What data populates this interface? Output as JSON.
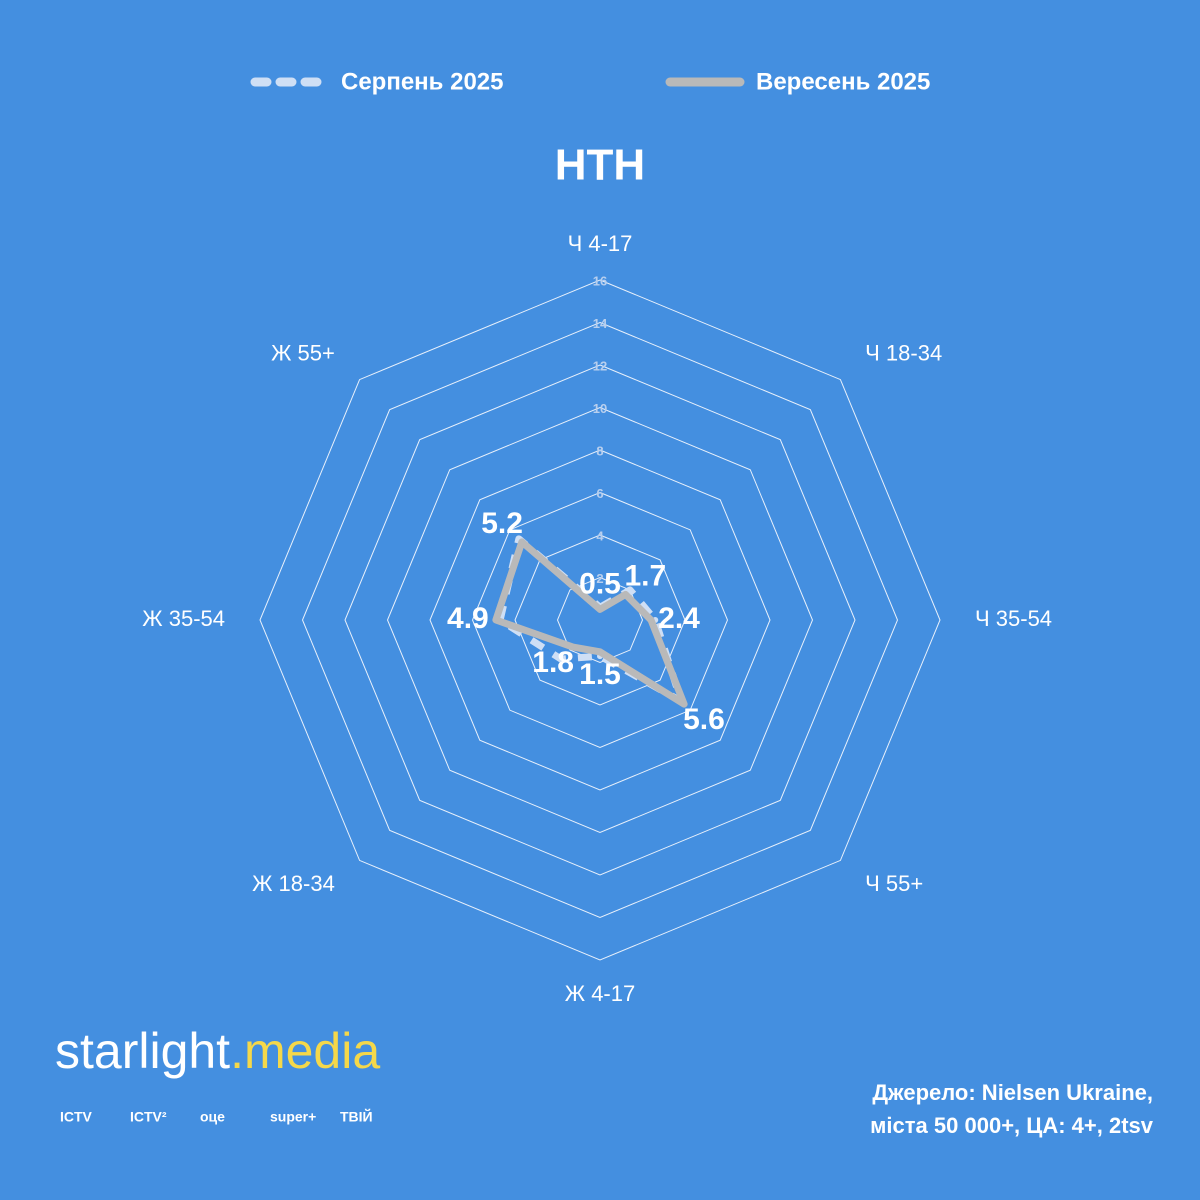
{
  "chart_data": {
    "type": "radar",
    "title": "НТН",
    "categories": [
      "Ч 4-17",
      "Ч 18-34",
      "Ч 35-54",
      "Ч 55+",
      "Ж 4-17",
      "Ж 18-34",
      "Ж 35-54",
      "Ж 55+"
    ],
    "series": [
      {
        "name": "Серпень 2025",
        "color": "#cfdff5",
        "dashed": true,
        "values": [
          0.6,
          2.0,
          2.6,
          5.4,
          1.7,
          2.6,
          4.7,
          5.4
        ]
      },
      {
        "name": "Вересень 2025",
        "color": "#b9b9b9",
        "dashed": false,
        "values": [
          0.5,
          1.7,
          2.4,
          5.6,
          1.5,
          1.8,
          4.9,
          5.2
        ],
        "show_labels": true
      }
    ],
    "rlim": [
      0,
      16
    ],
    "rticks": [
      2,
      4,
      6,
      8,
      10,
      12,
      14,
      16
    ],
    "grid": true,
    "legend": "top"
  },
  "branding": {
    "logo_main": "starlight",
    "logo_accent": ".media",
    "channels": [
      "ICTV",
      "ICTV²",
      "оце",
      "super+",
      "ТВІЙ"
    ]
  },
  "source": [
    "Джерело: Nielsen Ukraine,",
    "міста 50 000+, ЦА: 4+, 2tsv"
  ]
}
